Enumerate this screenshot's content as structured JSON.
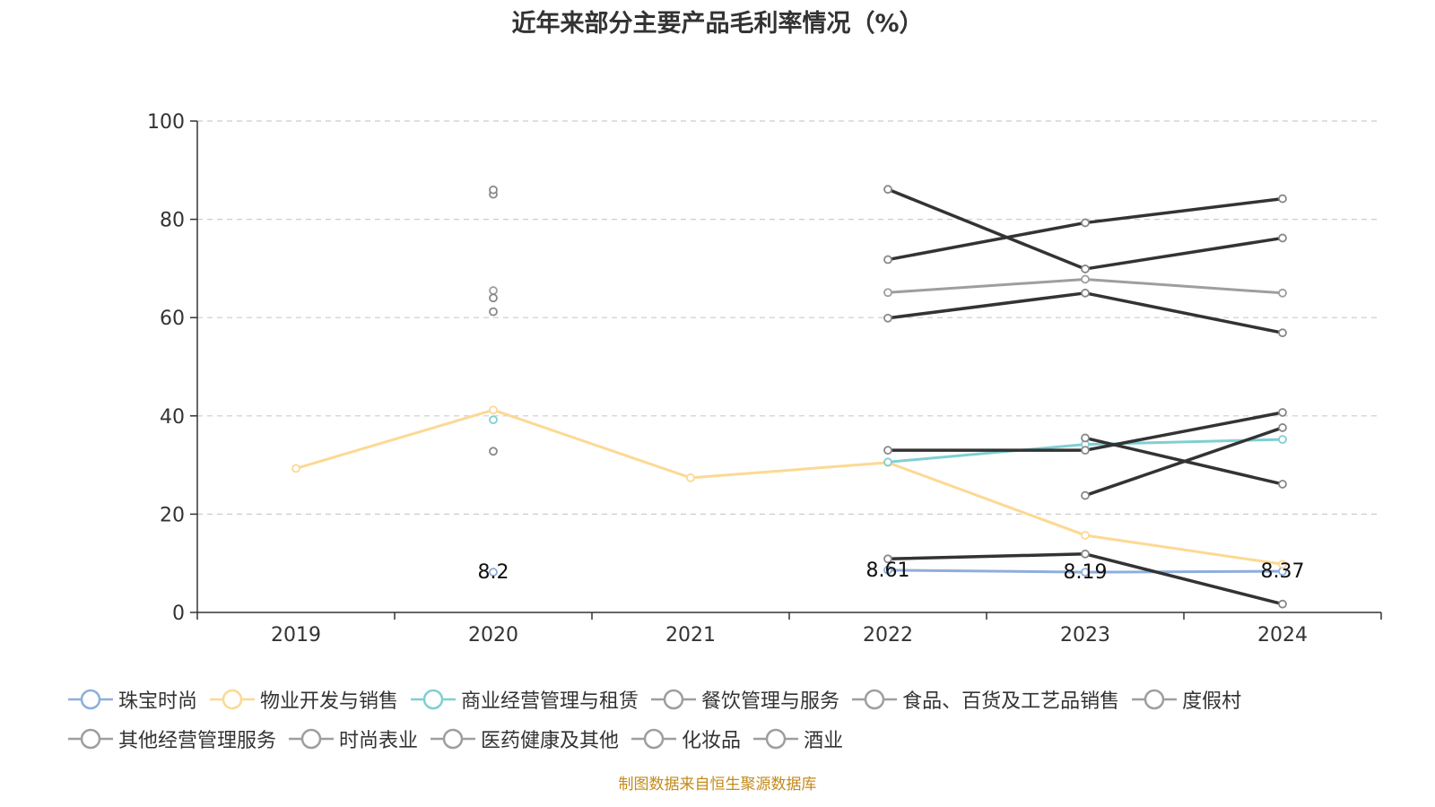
{
  "chart_data": {
    "type": "line",
    "title": "近年来部分主要产品毛利率情况（%）",
    "xlabel": "",
    "ylabel": "",
    "categories": [
      "2019",
      "2020",
      "2021",
      "2022",
      "2023",
      "2024"
    ],
    "ylim": [
      0,
      100
    ],
    "yticks": [
      0,
      20,
      40,
      60,
      80,
      100
    ],
    "grid": true,
    "legend_position": "bottom",
    "series": [
      {
        "name": "珠宝时尚",
        "color": "#8eaedc",
        "values": [
          null,
          8.2,
          null,
          8.61,
          8.19,
          8.37
        ],
        "labels": [
          "",
          "8.2",
          "",
          "8.61",
          "8.19",
          "8.37"
        ]
      },
      {
        "name": "物业开发与销售",
        "color": "#fcd993",
        "values": [
          29.3,
          41.2,
          27.4,
          30.5,
          15.7,
          9.8
        ]
      },
      {
        "name": "商业经营管理与租赁",
        "color": "#7fcfd4",
        "values": [
          null,
          39.2,
          null,
          30.6,
          34.2,
          35.2
        ]
      },
      {
        "name": "餐饮管理与服务",
        "color": "#333333",
        "values": [
          null,
          85.1,
          null,
          71.8,
          79.3,
          84.2
        ]
      },
      {
        "name": "食品、百货及工艺品销售",
        "color": "#333333",
        "values": [
          null,
          32.8,
          null,
          33.0,
          33.0,
          40.7
        ]
      },
      {
        "name": "度假村",
        "color": "#333333",
        "values": [
          null,
          86.0,
          null,
          86.1,
          69.9,
          76.2
        ]
      },
      {
        "name": "其他经营管理服务",
        "color": "#9e9e9e",
        "values": [
          null,
          65.5,
          null,
          65.1,
          67.8,
          65.0
        ]
      },
      {
        "name": "时尚表业",
        "color": "#333333",
        "values": [
          null,
          61.2,
          null,
          59.9,
          65.0,
          56.9
        ]
      },
      {
        "name": "医药健康及其他",
        "color": "#333333",
        "values": [
          null,
          null,
          null,
          null,
          35.5,
          26.1
        ]
      },
      {
        "name": "化妆品",
        "color": "#333333",
        "values": [
          null,
          64.0,
          null,
          10.9,
          11.9,
          1.7
        ]
      },
      {
        "name": "酒业",
        "color": "#333333",
        "values": [
          null,
          null,
          null,
          null,
          23.8,
          37.6
        ]
      }
    ]
  },
  "source_note": "制图数据来自恒生聚源数据库"
}
